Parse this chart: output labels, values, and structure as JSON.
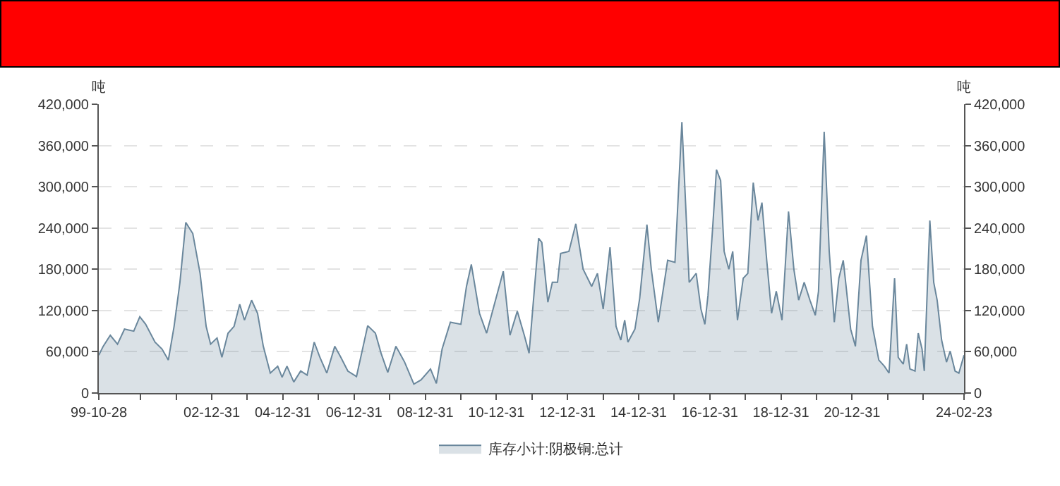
{
  "chart_data": {
    "type": "area",
    "ylabel": "吨",
    "y2label": "吨",
    "legend": "bottom",
    "grid": "y",
    "xlim": [
      "1999-10-28",
      "2024-02-23"
    ],
    "xticks": [
      {
        "value": "1999-10-28",
        "label": "99-10-28"
      },
      {
        "value": "2000-12-31",
        "label": null
      },
      {
        "value": "2001-12-31",
        "label": null
      },
      {
        "value": "2002-12-31",
        "label": "02-12-31"
      },
      {
        "value": "2003-12-31",
        "label": null
      },
      {
        "value": "2004-12-31",
        "label": "04-12-31"
      },
      {
        "value": "2005-12-31",
        "label": null
      },
      {
        "value": "2006-12-31",
        "label": "06-12-31"
      },
      {
        "value": "2007-12-31",
        "label": null
      },
      {
        "value": "2008-12-31",
        "label": "08-12-31"
      },
      {
        "value": "2009-12-31",
        "label": null
      },
      {
        "value": "2010-12-31",
        "label": "10-12-31"
      },
      {
        "value": "2011-12-31",
        "label": null
      },
      {
        "value": "2012-12-31",
        "label": "12-12-31"
      },
      {
        "value": "2013-12-31",
        "label": null
      },
      {
        "value": "2014-12-31",
        "label": "14-12-31"
      },
      {
        "value": "2015-12-31",
        "label": null
      },
      {
        "value": "2016-12-31",
        "label": "16-12-31"
      },
      {
        "value": "2017-12-31",
        "label": null
      },
      {
        "value": "2018-12-31",
        "label": "18-12-31"
      },
      {
        "value": "2019-12-31",
        "label": null
      },
      {
        "value": "2020-12-31",
        "label": "20-12-31"
      },
      {
        "value": "2021-12-31",
        "label": null
      },
      {
        "value": "2022-12-31",
        "label": null
      },
      {
        "value": "2024-02-23",
        "label": "24-02-23"
      }
    ],
    "ylim": [
      0,
      420000
    ],
    "yticks": [
      0,
      {
        "value": 60000,
        "label": "60,000"
      },
      {
        "value": 120000,
        "label": "120,000"
      },
      {
        "value": 180000,
        "label": "180,000"
      },
      {
        "value": 240000,
        "label": "240,000"
      },
      {
        "value": 300000,
        "label": "300,000"
      },
      {
        "value": 360000,
        "label": "360,000"
      },
      {
        "value": 420000,
        "label": "420,000"
      }
    ],
    "y2lim": [
      0,
      420000
    ],
    "y2ticks": [
      0,
      {
        "value": 60000,
        "label": "60,000"
      },
      {
        "value": 120000,
        "label": "120,000"
      },
      {
        "value": 180000,
        "label": "180,000"
      },
      {
        "value": 240000,
        "label": "240,000"
      },
      {
        "value": 300000,
        "label": "300,000"
      },
      {
        "value": 360000,
        "label": "360,000"
      },
      {
        "value": 420000,
        "label": "420,000"
      }
    ],
    "x": [
      "1999-10-28",
      "1999-12-12",
      "2000-02-23",
      "2000-05-07",
      "2000-07-18",
      "2000-10-21",
      "2000-12-22",
      "2001-02-20",
      "2001-05-27",
      "2001-08-07",
      "2001-10-11",
      "2001-12-09",
      "2002-02-07",
      "2002-04-08",
      "2002-06-19",
      "2002-09-02",
      "2002-11-03",
      "2002-12-19",
      "2003-02-23",
      "2003-04-14",
      "2003-06-16",
      "2003-08-17",
      "2003-10-14",
      "2003-12-02",
      "2004-02-13",
      "2004-04-14",
      "2004-06-12",
      "2004-08-23",
      "2004-11-07",
      "2004-12-22",
      "2005-02-10",
      "2005-04-21",
      "2005-07-01",
      "2005-09-05",
      "2005-11-17",
      "2006-01-14",
      "2006-03-26",
      "2006-06-16",
      "2006-08-17",
      "2006-10-28",
      "2007-01-25",
      "2007-05-20",
      "2007-08-07",
      "2007-10-04",
      "2007-12-12",
      "2008-03-05",
      "2008-06-02",
      "2008-09-05",
      "2008-11-17",
      "2009-02-23",
      "2009-04-24",
      "2009-06-22",
      "2009-09-15",
      "2010-01-01",
      "2010-02-27",
      "2010-04-18",
      "2010-07-11",
      "2010-09-22",
      "2010-12-05",
      "2011-03-12",
      "2011-05-20",
      "2011-08-03",
      "2011-10-14",
      "2011-12-02",
      "2012-03-09",
      "2012-04-11",
      "2012-06-12",
      "2012-07-28",
      "2012-09-19",
      "2012-10-21",
      "2013-01-14",
      "2013-03-26",
      "2013-06-09",
      "2013-09-05",
      "2013-11-03",
      "2014-01-01",
      "2014-03-12",
      "2014-05-13",
      "2014-07-01",
      "2014-08-10",
      "2014-09-12",
      "2014-11-23",
      "2015-01-11",
      "2015-03-26",
      "2015-05-10",
      "2015-07-21",
      "2015-10-25",
      "2016-01-08",
      "2016-03-19",
      "2016-06-02",
      "2016-08-13",
      "2016-10-01",
      "2016-11-10",
      "2016-12-12",
      "2017-01-28",
      "2017-03-09",
      "2017-04-21",
      "2017-05-27",
      "2017-07-14",
      "2017-08-23",
      "2017-10-11",
      "2017-12-09",
      "2018-01-25",
      "2018-03-22",
      "2018-05-10",
      "2018-06-19",
      "2018-08-07",
      "2018-09-26",
      "2018-11-13",
      "2019-01-11",
      "2019-03-19",
      "2019-05-13",
      "2019-07-01",
      "2019-08-27",
      "2019-10-25",
      "2019-12-19",
      "2020-01-21",
      "2020-03-19",
      "2020-05-10",
      "2020-07-01",
      "2020-08-17",
      "2020-10-01",
      "2020-10-28",
      "2020-12-16",
      "2021-02-03",
      "2021-04-01",
      "2021-05-27",
      "2021-07-28",
      "2021-10-01",
      "2021-11-27",
      "2022-01-14",
      "2022-03-12",
      "2022-04-18",
      "2022-06-09",
      "2022-07-14",
      "2022-08-17",
      "2022-10-08",
      "2022-11-10",
      "2022-12-19",
      "2023-01-11",
      "2023-03-09",
      "2023-04-18",
      "2023-05-23",
      "2023-07-08",
      "2023-08-27",
      "2023-10-04",
      "2023-11-23",
      "2024-01-01",
      "2024-02-23"
    ],
    "series": [
      {
        "name": "库存小计:阴极铜:总计",
        "color": "#6a879c",
        "values": [
          55000,
          68000,
          84000,
          71000,
          93000,
          90000,
          111000,
          100000,
          74000,
          64000,
          48000,
          97000,
          161000,
          248000,
          232000,
          174000,
          97000,
          71000,
          80000,
          52000,
          87000,
          97000,
          129000,
          106000,
          135000,
          116000,
          68000,
          29000,
          39000,
          23000,
          39000,
          16000,
          32000,
          26000,
          74000,
          52000,
          29000,
          68000,
          52000,
          32000,
          24000,
          98000,
          87000,
          58000,
          30000,
          68000,
          45000,
          13000,
          19000,
          35000,
          14000,
          64000,
          103000,
          100000,
          155000,
          187000,
          116000,
          87000,
          126000,
          177000,
          84000,
          119000,
          84000,
          58000,
          225000,
          219000,
          132000,
          161000,
          161000,
          203000,
          206000,
          246000,
          180000,
          155000,
          174000,
          122000,
          212000,
          97000,
          77000,
          106000,
          74000,
          93000,
          138000,
          245000,
          180000,
          103000,
          193000,
          190000,
          394000,
          161000,
          174000,
          122000,
          100000,
          142000,
          238000,
          325000,
          309000,
          206000,
          180000,
          206000,
          106000,
          167000,
          174000,
          306000,
          251000,
          277000,
          193000,
          116000,
          148000,
          106000,
          264000,
          180000,
          135000,
          161000,
          135000,
          113000,
          148000,
          380000,
          206000,
          103000,
          167000,
          193000,
          158000,
          93000,
          68000,
          193000,
          229000,
          97000,
          48000,
          39000,
          29000,
          167000,
          52000,
          42000,
          71000,
          35000,
          32000,
          87000,
          64000,
          32000,
          251000,
          161000,
          135000,
          77000,
          45000,
          61000,
          32000,
          29000,
          55000
        ]
      }
    ]
  }
}
